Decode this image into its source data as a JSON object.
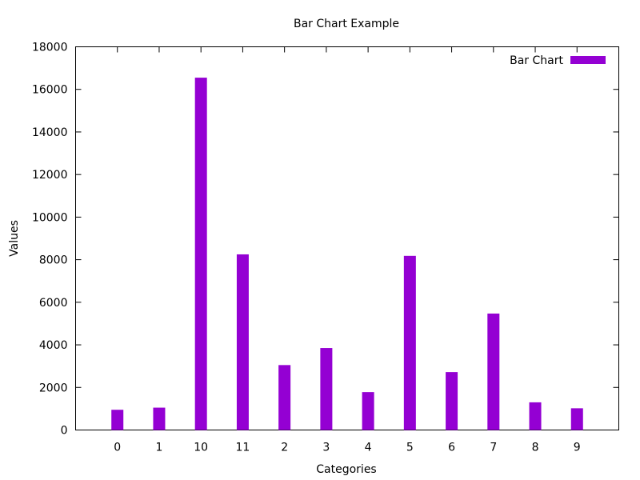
{
  "chart_data": {
    "type": "bar",
    "title": "Bar Chart Example",
    "xlabel": "Categories",
    "ylabel": "Values",
    "categories": [
      "0",
      "1",
      "10",
      "11",
      "2",
      "3",
      "4",
      "5",
      "6",
      "7",
      "8",
      "9"
    ],
    "series": [
      {
        "name": "Bar Chart",
        "color": "#9400d3",
        "values": [
          950,
          1050,
          16550,
          8250,
          3050,
          3850,
          1780,
          8180,
          2720,
          5470,
          1300,
          1020
        ]
      }
    ],
    "ylim": [
      0,
      18000
    ],
    "yticks": [
      0,
      2000,
      4000,
      6000,
      8000,
      10000,
      12000,
      14000,
      16000,
      18000
    ],
    "grid": false,
    "legend": "top-right"
  }
}
